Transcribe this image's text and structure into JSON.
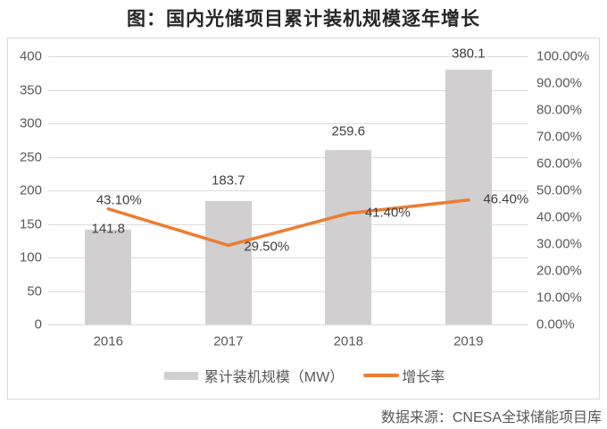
{
  "title": "图：国内光储项目累计装机规模逐年增长",
  "source_note": "数据来源：CNESA全球储能项目库",
  "colors": {
    "bar": "#d1cfcf",
    "line": "#ED7D31",
    "grid": "#dcdcdc",
    "frame_border": "#d9d9d9",
    "axis_text": "#595959",
    "data_label_text": "#3f3f3f",
    "title_text": "#262626"
  },
  "legend": {
    "items": [
      {
        "label": "累计装机规模（MW）",
        "marker": "bar"
      },
      {
        "label": "增长率",
        "marker": "line"
      }
    ]
  },
  "chart_data": {
    "type": "bar+line combo",
    "title": "图：国内光储项目累计装机规模逐年增长",
    "categories": [
      "2016",
      "2017",
      "2018",
      "2019"
    ],
    "series": [
      {
        "name": "累计装机规模（MW）",
        "type": "bar",
        "axis": "left",
        "values": [
          141.8,
          183.7,
          259.6,
          380.1
        ],
        "data_labels": [
          "141.8",
          "183.7",
          "259.6",
          "380.1"
        ]
      },
      {
        "name": "增长率",
        "type": "line",
        "axis": "right",
        "values_percent": [
          43.1,
          29.5,
          41.4,
          46.4
        ],
        "data_labels": [
          "43.10%",
          "29.50%",
          "41.40%",
          "46.40%"
        ]
      }
    ],
    "left_axis": {
      "min": 0,
      "max": 400,
      "step": 50,
      "ticks": [
        "0",
        "50",
        "100",
        "150",
        "200",
        "250",
        "300",
        "350",
        "400"
      ]
    },
    "right_axis": {
      "min_percent": 0,
      "max_percent": 100,
      "step_percent": 10,
      "ticks": [
        "0.00%",
        "10.00%",
        "20.00%",
        "30.00%",
        "40.00%",
        "50.00%",
        "60.00%",
        "70.00%",
        "80.00%",
        "90.00%",
        "100.00%"
      ]
    },
    "gridlines": "horizontal",
    "legend_position": "bottom"
  }
}
